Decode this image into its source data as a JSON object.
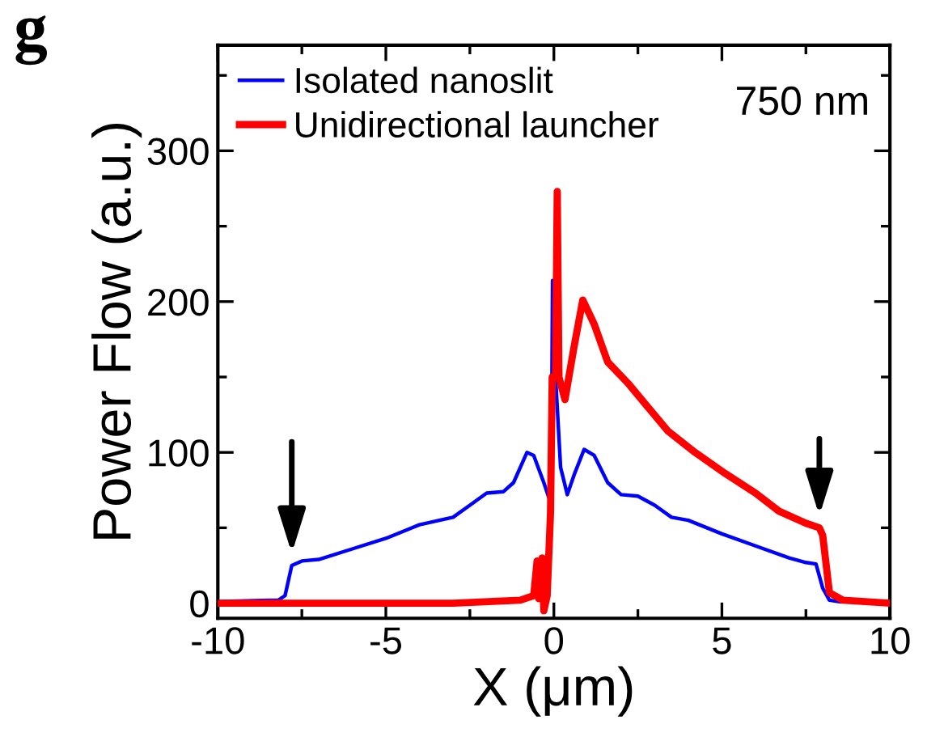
{
  "chart_data": {
    "type": "line",
    "xlabel": "X (μm)",
    "ylabel": "Power Flow (a.u.)",
    "annotations": [
      "g",
      "750 nm"
    ],
    "xlim": [
      -10,
      10
    ],
    "xticks": [
      -10,
      -5,
      0,
      5,
      10
    ],
    "ylim": [
      -10,
      370
    ],
    "yticks": [
      0,
      100,
      200,
      300
    ],
    "grid": false,
    "legend": "top left",
    "line_style": "solid",
    "marker": "none",
    "series": [
      {
        "name": "Isolated nanoslit",
        "color": "#0000ff",
        "x": [
          -10,
          -8.5,
          -8.2,
          -8.0,
          -7.8,
          -7.5,
          -7,
          -6,
          -5,
          -4,
          -3,
          -2.5,
          -2,
          -1.5,
          -1.2,
          -0.8,
          -0.6,
          -0.3,
          -0.15,
          -0.07,
          -0.04,
          0.05,
          0.2,
          0.4,
          0.6,
          0.9,
          1.2,
          1.6,
          2,
          2.5,
          3,
          3.5,
          4,
          5,
          6,
          7,
          7.5,
          7.8,
          8.0,
          8.2,
          8.5
        ],
        "values": [
          1,
          2,
          2,
          5,
          25,
          28,
          29,
          36,
          43,
          52,
          57,
          65,
          73,
          74,
          80,
          100,
          98,
          80,
          70,
          100,
          214,
          150,
          90,
          72,
          85,
          102,
          98,
          80,
          72,
          71,
          65,
          57,
          55,
          46,
          38,
          30,
          27,
          26,
          10,
          2,
          1
        ]
      },
      {
        "name": "Unidirectional launcher",
        "color": "#ff0000",
        "x": [
          -10,
          -3,
          -1,
          -0.6,
          -0.5,
          -0.45,
          -0.35,
          -0.3,
          -0.2,
          -0.1,
          -0.05,
          0.05,
          0.1,
          0.15,
          0.33,
          0.6,
          0.86,
          1.2,
          1.6,
          2.2,
          2.8,
          3.4,
          4.2,
          5.1,
          6,
          6.7,
          7.5,
          7.9,
          8.0,
          8.2,
          8.6,
          10
        ],
        "values": [
          0,
          0,
          2,
          5,
          28,
          3,
          30,
          -5,
          5,
          60,
          150,
          150,
          273,
          150,
          135,
          170,
          201,
          185,
          160,
          146,
          130,
          114,
          100,
          86,
          73,
          61,
          53,
          50,
          45,
          7,
          2,
          0
        ]
      }
    ]
  }
}
